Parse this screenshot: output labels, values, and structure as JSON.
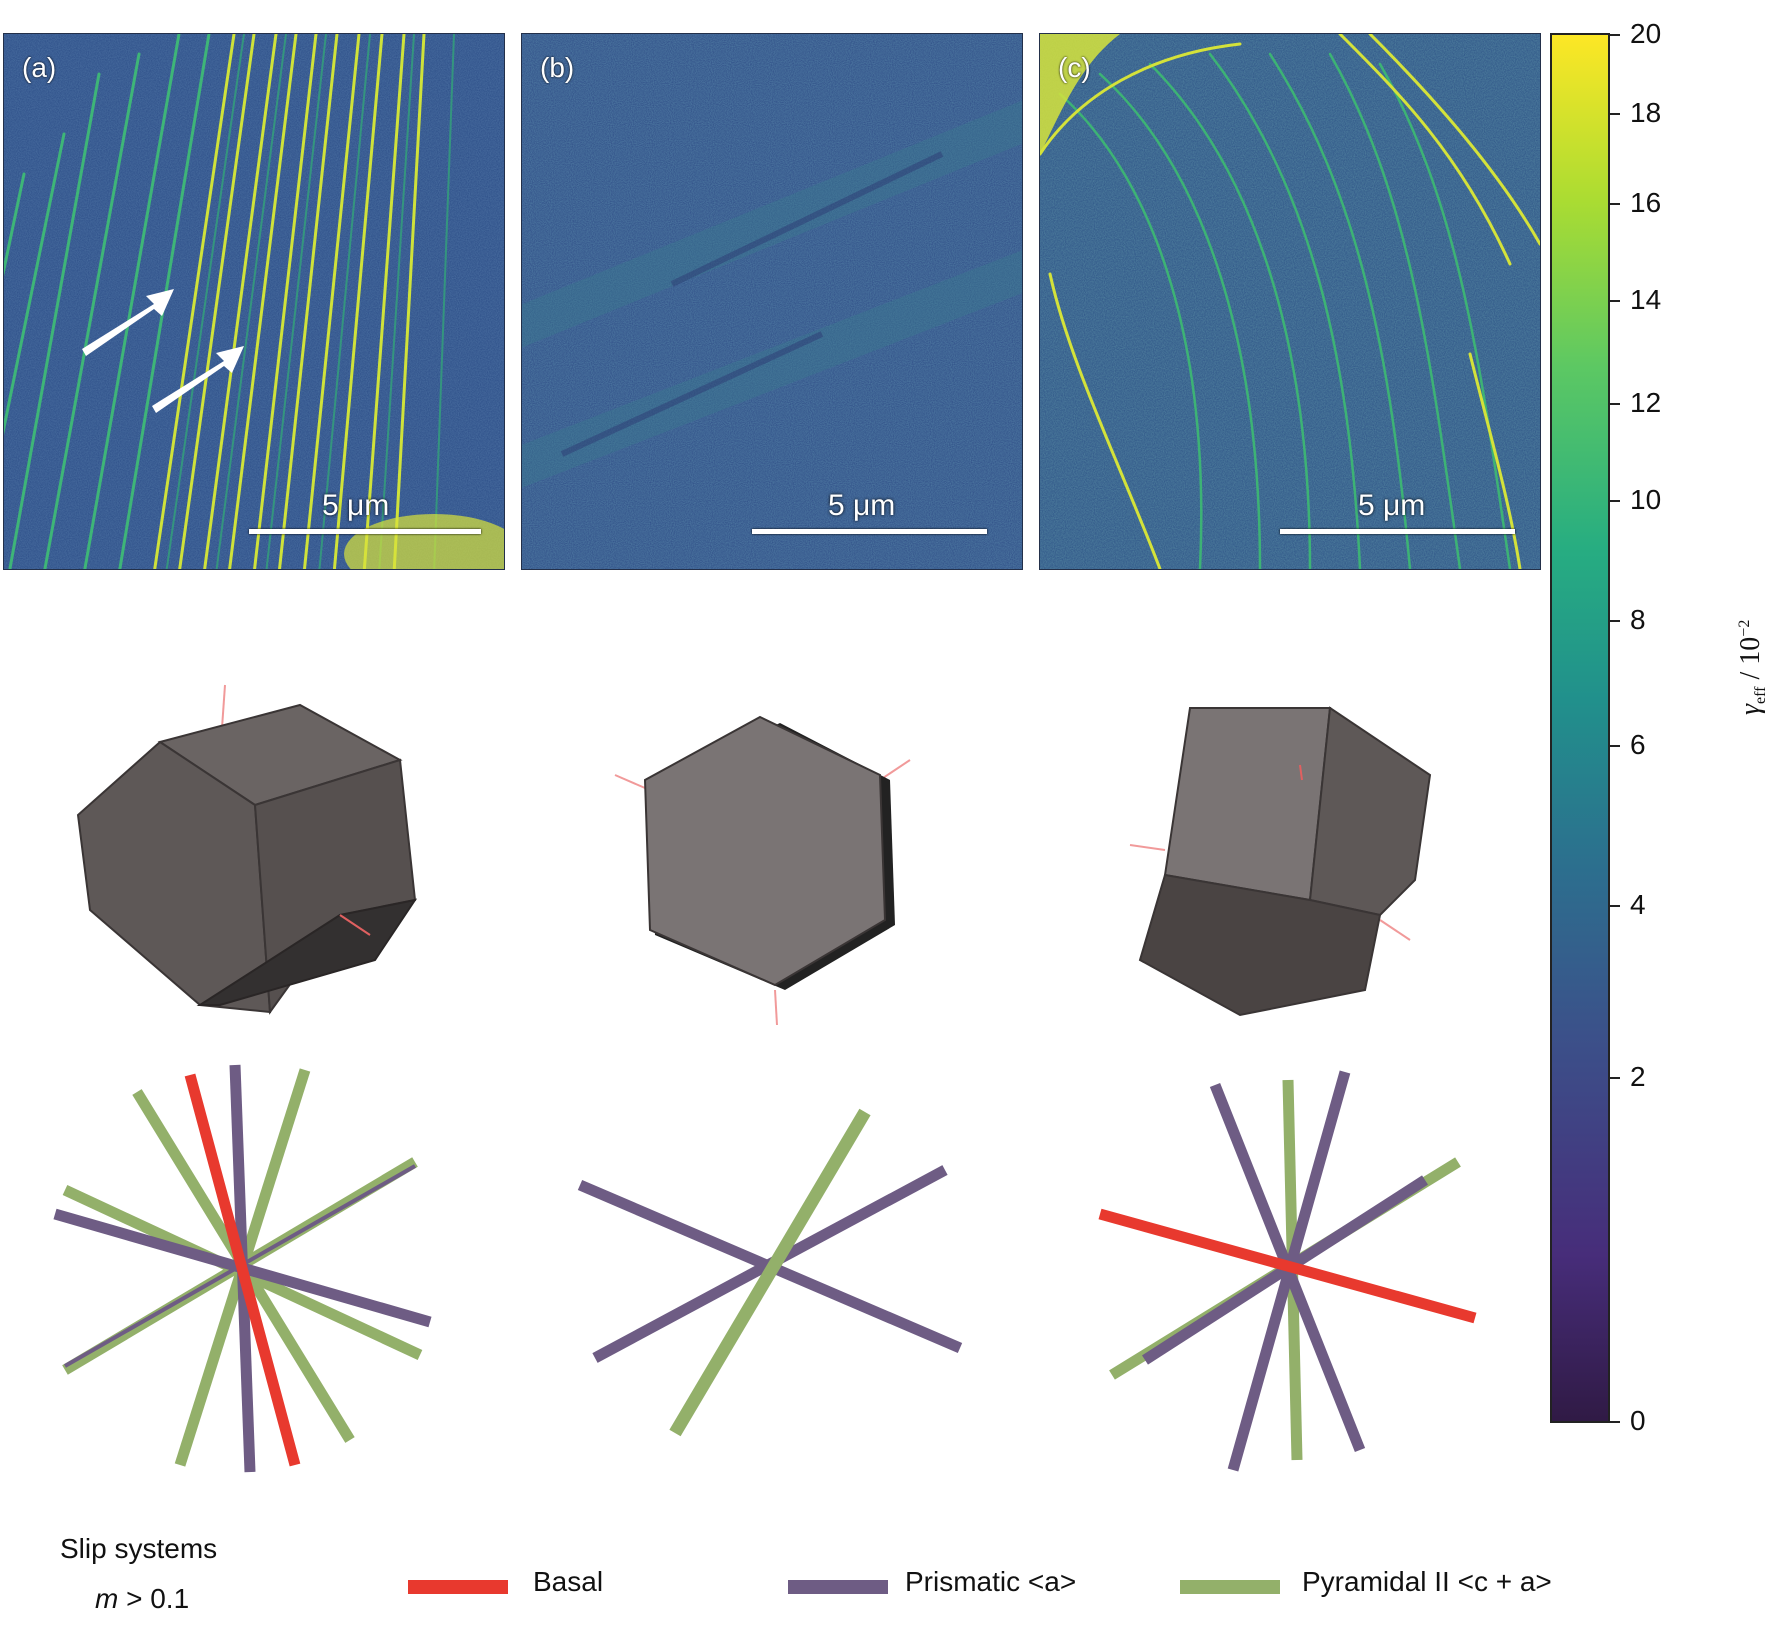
{
  "panels": [
    {
      "label": "(a)",
      "scalebar": "5 μm"
    },
    {
      "label": "(b)",
      "scalebar": "5 μm"
    },
    {
      "label": "(c)",
      "scalebar": "5 μm"
    }
  ],
  "colorbar": {
    "ticks": [
      "20",
      "18",
      "16",
      "14",
      "12",
      "10",
      "8",
      "6",
      "4",
      "2",
      "0"
    ],
    "axis_label_symbol": "γ",
    "axis_label_sub": "eff",
    "axis_label_rest": " / 10",
    "axis_label_sup": "−2"
  },
  "legend": {
    "title": "Slip systems",
    "criterion_m": "m",
    "criterion_rest": " > 0.1",
    "basal": "Basal",
    "prismatic": "Prismatic <a>",
    "pyramidal": "Pyramidal II <c + a>",
    "colors": {
      "basal": "#e8392e",
      "prismatic": "#6e5c84",
      "pyramidal": "#93b06a"
    }
  }
}
